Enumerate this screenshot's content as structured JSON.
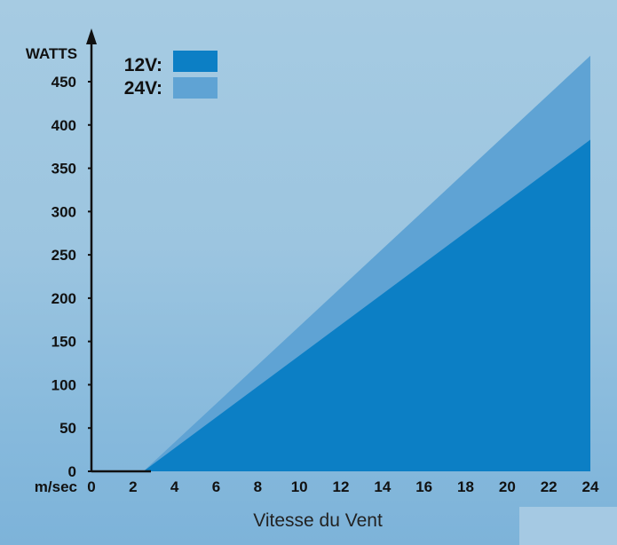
{
  "chart_data": {
    "type": "area",
    "title": "",
    "xlabel": "Vitesse du Vent",
    "ylabel": "WATTS",
    "x_unit_label": "m/sec",
    "xlim": [
      0,
      24
    ],
    "ylim": [
      0,
      450
    ],
    "x_ticks": [
      0,
      2,
      4,
      6,
      8,
      10,
      12,
      14,
      16,
      18,
      20,
      22,
      24
    ],
    "y_ticks": [
      0,
      50,
      100,
      150,
      200,
      250,
      300,
      350,
      400,
      450
    ],
    "grid": false,
    "legend_position": "top-left",
    "series": [
      {
        "name": "24V:",
        "color": "#5fa3d4",
        "x": [
          0,
          2.5,
          24
        ],
        "values": [
          0,
          0,
          480
        ]
      },
      {
        "name": "12V:",
        "color": "#0c7fc5",
        "x": [
          0,
          2.5,
          24
        ],
        "values": [
          0,
          0,
          383
        ]
      }
    ]
  },
  "legend": [
    {
      "label": "12V:",
      "color": "#0c7fc5"
    },
    {
      "label": "24V:",
      "color": "#5fa3d4"
    }
  ]
}
